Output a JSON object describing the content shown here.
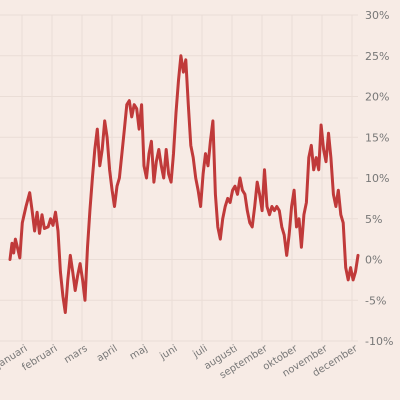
{
  "chart_data": {
    "type": "line",
    "title": "",
    "xlabel": "",
    "ylabel": "",
    "ylim": [
      -10,
      30
    ],
    "y_ticks": [
      "30%",
      "25%",
      "20%",
      "15%",
      "10%",
      "5%",
      "0%",
      "-5%",
      "-10%"
    ],
    "y_tick_values": [
      30,
      25,
      20,
      15,
      10,
      5,
      0,
      -5,
      -10
    ],
    "y_axis_position": "right",
    "grid": true,
    "x_categories": [
      "januari",
      "februari",
      "mars",
      "april",
      "maj",
      "juni",
      "juli",
      "augusti",
      "september",
      "oktober",
      "november",
      "december"
    ],
    "series": [
      {
        "color": "#c03a3a",
        "points": [
          [
            0,
            0.0
          ],
          [
            0.8,
            2.0
          ],
          [
            1.5,
            0.8
          ],
          [
            2.2,
            2.5
          ],
          [
            3,
            1.5
          ],
          [
            4,
            0.2
          ],
          [
            5,
            4.5
          ],
          [
            6.5,
            6.5
          ],
          [
            8,
            8.2
          ],
          [
            9,
            6.0
          ],
          [
            10,
            3.5
          ],
          [
            11,
            5.8
          ],
          [
            12,
            3.2
          ],
          [
            13,
            5.5
          ],
          [
            14,
            3.8
          ],
          [
            15.5,
            4.0
          ],
          [
            16.5,
            5.0
          ],
          [
            17.5,
            4.2
          ],
          [
            18.5,
            5.8
          ],
          [
            19.5,
            3.5
          ],
          [
            20.5,
            -1.5
          ],
          [
            21.5,
            -4.5
          ],
          [
            22.5,
            -6.5
          ],
          [
            23.5,
            -2.5
          ],
          [
            24.5,
            0.5
          ],
          [
            25.5,
            -1.5
          ],
          [
            26.5,
            -3.8
          ],
          [
            27.5,
            -2.0
          ],
          [
            28.5,
            -0.5
          ],
          [
            29.5,
            -2.5
          ],
          [
            30.5,
            -5.0
          ],
          [
            31.5,
            1.5
          ],
          [
            32.5,
            6.0
          ],
          [
            33.5,
            10.0
          ],
          [
            34.5,
            13.5
          ],
          [
            35.5,
            16.0
          ],
          [
            36.5,
            11.5
          ],
          [
            37.5,
            13.5
          ],
          [
            38.5,
            17.0
          ],
          [
            39.5,
            15.0
          ],
          [
            40.5,
            11.0
          ],
          [
            41.5,
            8.5
          ],
          [
            42.5,
            6.5
          ],
          [
            43.5,
            9.0
          ],
          [
            44.5,
            10.0
          ],
          [
            45.5,
            13.0
          ],
          [
            46.5,
            16.0
          ],
          [
            47.5,
            19.0
          ],
          [
            48.5,
            19.5
          ],
          [
            49.5,
            17.5
          ],
          [
            50.5,
            19.0
          ],
          [
            51.5,
            18.5
          ],
          [
            52.5,
            16.0
          ],
          [
            53.5,
            19.0
          ],
          [
            54.5,
            11.5
          ],
          [
            55.5,
            10.0
          ],
          [
            56.5,
            13.0
          ],
          [
            57.5,
            14.5
          ],
          [
            58.5,
            9.5
          ],
          [
            59.5,
            12.0
          ],
          [
            60.5,
            13.5
          ],
          [
            61.5,
            11.5
          ],
          [
            62.5,
            10.0
          ],
          [
            63.5,
            13.5
          ],
          [
            64.5,
            10.5
          ],
          [
            65.5,
            9.5
          ],
          [
            66.5,
            13.0
          ],
          [
            67.5,
            18.0
          ],
          [
            68.5,
            22.0
          ],
          [
            69.5,
            25.0
          ],
          [
            70.5,
            23.0
          ],
          [
            71.5,
            24.5
          ],
          [
            72.5,
            19.0
          ],
          [
            73.5,
            14.0
          ],
          [
            74.5,
            12.5
          ],
          [
            75.5,
            10.0
          ],
          [
            76.5,
            8.5
          ],
          [
            77.5,
            6.5
          ],
          [
            78.5,
            10.5
          ],
          [
            79.5,
            13.0
          ],
          [
            80.5,
            11.5
          ],
          [
            81.5,
            14.5
          ],
          [
            82.5,
            17.0
          ],
          [
            83.5,
            8.0
          ],
          [
            84.5,
            4.0
          ],
          [
            85.5,
            2.5
          ],
          [
            86.5,
            5.0
          ],
          [
            87.5,
            6.5
          ],
          [
            88.5,
            7.5
          ],
          [
            89.5,
            7.0
          ],
          [
            90.5,
            8.5
          ],
          [
            91.5,
            9.0
          ],
          [
            92.5,
            8.0
          ],
          [
            93.5,
            10.0
          ],
          [
            94.5,
            8.5
          ],
          [
            95.5,
            8.0
          ],
          [
            96.5,
            6.0
          ],
          [
            97.5,
            4.5
          ],
          [
            98.5,
            4.0
          ],
          [
            99.5,
            6.5
          ],
          [
            100.5,
            9.5
          ],
          [
            101.5,
            8.0
          ],
          [
            102.5,
            6.0
          ],
          [
            103.5,
            11.0
          ],
          [
            104.5,
            6.5
          ],
          [
            105.5,
            5.5
          ],
          [
            106.5,
            6.5
          ],
          [
            107.5,
            6.0
          ],
          [
            108.5,
            6.5
          ],
          [
            109.5,
            6.0
          ],
          [
            110.5,
            4.0
          ],
          [
            111.5,
            3.0
          ],
          [
            112.5,
            0.5
          ],
          [
            113.5,
            3.0
          ],
          [
            114.5,
            6.5
          ],
          [
            115.5,
            8.5
          ],
          [
            116.5,
            4.0
          ],
          [
            117.5,
            5.0
          ],
          [
            118.5,
            1.5
          ],
          [
            119.5,
            5.5
          ],
          [
            120.5,
            7.0
          ],
          [
            121.5,
            12.5
          ],
          [
            122.5,
            14.0
          ],
          [
            123.5,
            11.0
          ],
          [
            124.5,
            12.5
          ],
          [
            125.5,
            11.0
          ],
          [
            126.5,
            16.5
          ],
          [
            127.5,
            13.5
          ],
          [
            128.5,
            12.0
          ],
          [
            129.5,
            15.5
          ],
          [
            130.5,
            12.5
          ],
          [
            131.5,
            8.0
          ],
          [
            132.5,
            6.5
          ],
          [
            133.5,
            8.5
          ],
          [
            134.5,
            5.5
          ],
          [
            135.5,
            4.5
          ],
          [
            136.5,
            -1.0
          ],
          [
            137.5,
            -2.5
          ],
          [
            138.5,
            -1.0
          ],
          [
            139.5,
            -2.5
          ],
          [
            140.5,
            -1.5
          ],
          [
            141.5,
            0.5
          ]
        ]
      }
    ]
  }
}
